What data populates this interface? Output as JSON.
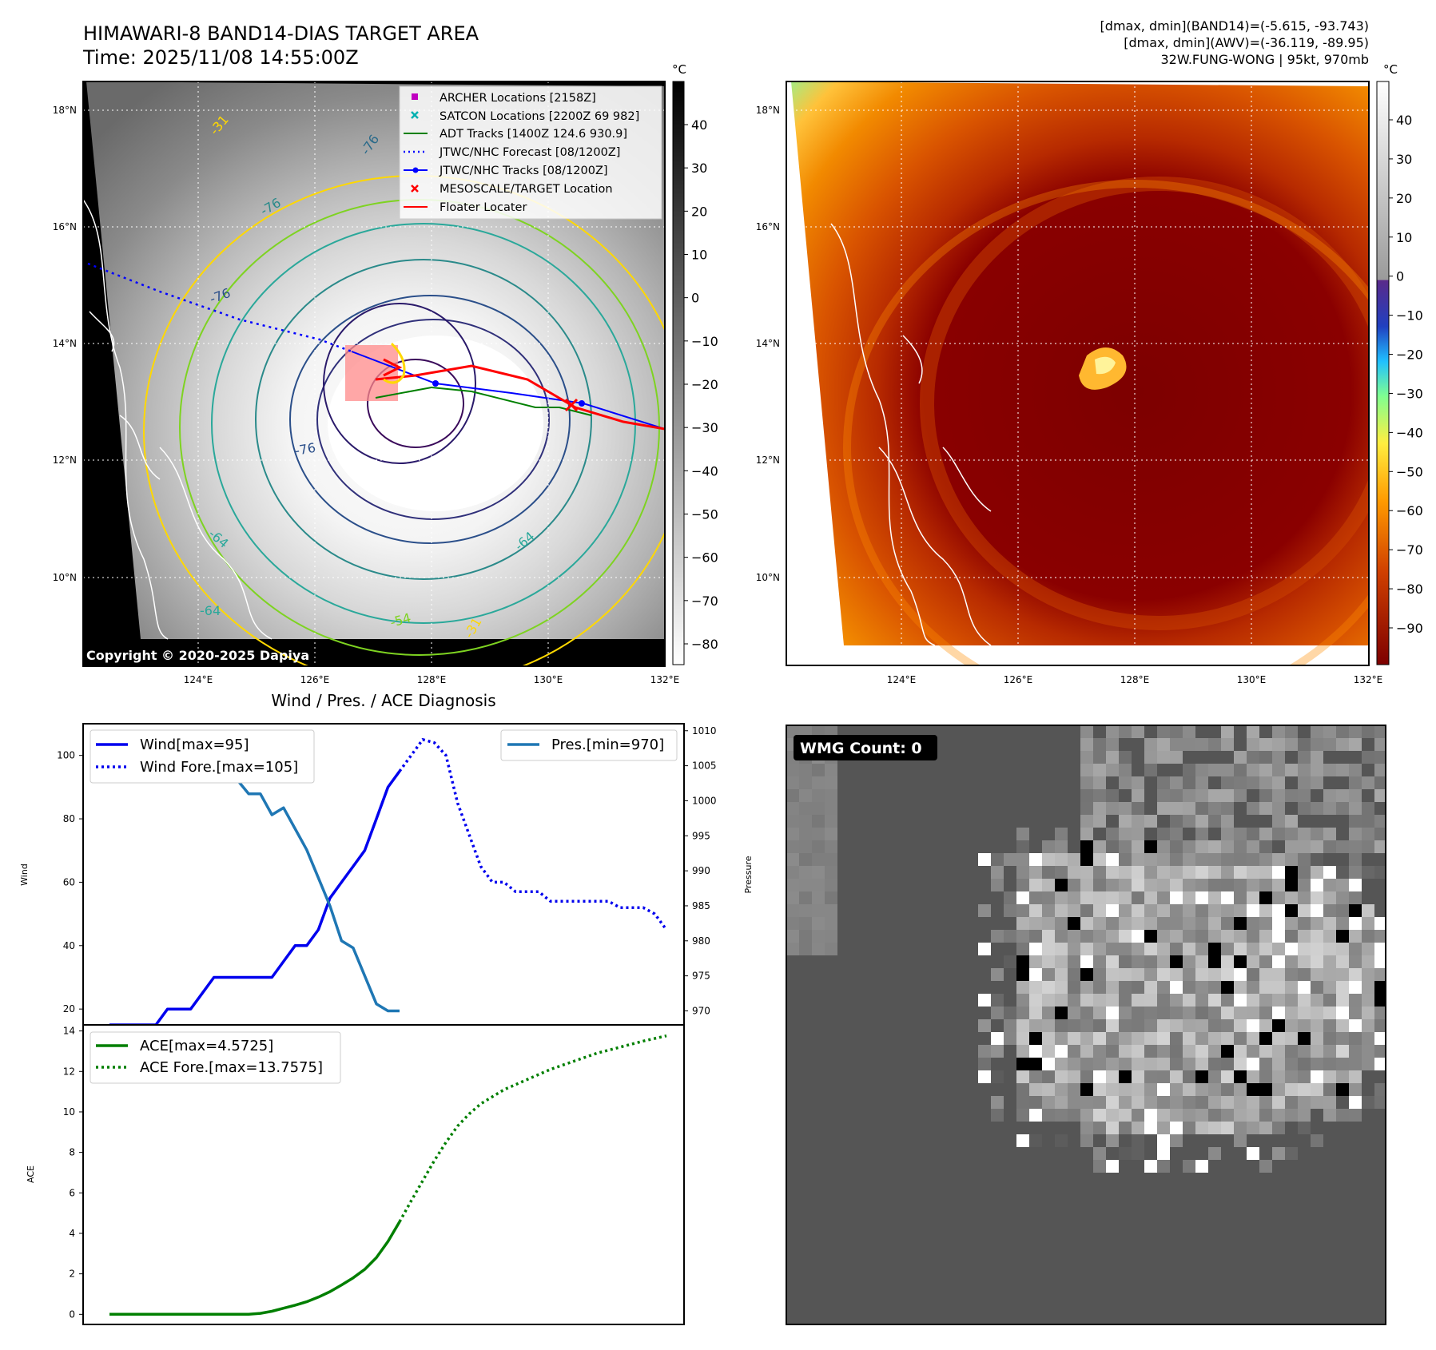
{
  "header": {
    "title_line1": "HIMAWARI-8 BAND14-DIAS TARGET AREA",
    "title_line2": "Time: 2025/11/08 14:55:00Z",
    "info_line1": "[dmax, dmin](BAND14)=(-5.615, -93.743)",
    "info_line2": "[dmax, dmin](AWV)=(-36.119, -89.95)",
    "info_line3": "32W.FUNG-WONG | 95kt, 970mb"
  },
  "map": {
    "lat_labels": [
      "18°N",
      "16°N",
      "14°N",
      "12°N",
      "10°N"
    ],
    "lon_labels": [
      "124°E",
      "126°E",
      "128°E",
      "130°E",
      "132°E"
    ],
    "copyright": "Copyright © 2020-2025 Dapiya",
    "contour_labels": [
      "-76",
      "-76",
      "-76",
      "-76",
      "-64",
      "-64",
      "-64",
      "-54",
      "-31",
      "-31"
    ],
    "legend": [
      {
        "label": "ARCHER Locations [2158Z]",
        "color": "#c000c0",
        "marker": "square"
      },
      {
        "label": "SATCON Locations [2200Z 69 982]",
        "color": "#00b0b0",
        "marker": "x"
      },
      {
        "label": "ADT Tracks [1400Z 124.6 930.9]",
        "color": "#008000",
        "marker": "line"
      },
      {
        "label": "JTWC/NHC Forecast [08/1200Z]",
        "color": "#0000ff",
        "marker": "dotted"
      },
      {
        "label": "JTWC/NHC Tracks [08/1200Z]",
        "color": "#0000ff",
        "marker": "line-dot"
      },
      {
        "label": "MESOSCALE/TARGET Location",
        "color": "#ff0000",
        "marker": "x"
      },
      {
        "label": "Floater Locater",
        "color": "#ff0000",
        "marker": "line"
      }
    ]
  },
  "colorbar_gray": {
    "unit": "°C",
    "ticks": [
      "40",
      "30",
      "20",
      "10",
      "0",
      "−10",
      "−20",
      "−30",
      "−40",
      "−50",
      "−60",
      "−70",
      "−80"
    ]
  },
  "colorbar_color": {
    "unit": "°C",
    "ticks": [
      "40",
      "30",
      "20",
      "10",
      "0",
      "−10",
      "−20",
      "−30",
      "−40",
      "−50",
      "−60",
      "−70",
      "−80",
      "−90"
    ]
  },
  "wmg": {
    "label": "WMG Count: 0"
  },
  "colors": {
    "wind": "#0000ee",
    "pres": "#1f77b4",
    "ace": "#007f00",
    "cold_core": "#7d0000",
    "warm_edge": "#ff9e00"
  },
  "chart_data": [
    {
      "type": "line",
      "title": "Wind / Pres. / ACE Diagnosis",
      "ylabel": "Wind",
      "ylabel2": "Pressure",
      "ylim": [
        15,
        110
      ],
      "ylim2": [
        968,
        1011
      ],
      "x_range": [
        0,
        50
      ],
      "yticks": [
        "100",
        "80",
        "60",
        "40",
        "20"
      ],
      "yticks2": [
        "1010",
        "1005",
        "1000",
        "995",
        "990",
        "985",
        "980",
        "975",
        "970"
      ],
      "series": [
        {
          "name": "Wind[max=95]",
          "axis": "left",
          "style": "solid",
          "x": [
            0,
            2,
            3,
            4,
            5,
            6,
            7,
            8,
            9,
            10,
            11,
            12,
            13,
            14,
            15,
            16,
            17,
            18,
            19,
            20,
            21,
            22,
            23,
            24,
            25
          ],
          "values": [
            15,
            15,
            15,
            15,
            20,
            20,
            20,
            25,
            30,
            30,
            30,
            30,
            30,
            30,
            35,
            40,
            40,
            45,
            55,
            60,
            65,
            70,
            80,
            90,
            95
          ]
        },
        {
          "name": "Wind Fore.[max=105]",
          "axis": "left",
          "style": "dotted",
          "x": [
            25,
            26,
            27,
            28,
            29,
            30,
            31,
            32,
            33,
            34,
            35,
            36,
            37,
            38,
            39,
            40,
            41,
            42,
            43,
            44,
            45,
            46,
            47,
            48
          ],
          "values": [
            95,
            100,
            105,
            104,
            100,
            85,
            75,
            65,
            60,
            60,
            57,
            57,
            57,
            54,
            54,
            54,
            54,
            54,
            54,
            52,
            52,
            52,
            50,
            45
          ]
        },
        {
          "name": "Pres.[min=970]",
          "axis": "right",
          "style": "solid",
          "x": [
            0,
            1,
            2,
            3,
            4,
            5,
            6,
            7,
            8,
            9,
            10,
            11,
            12,
            13,
            14,
            15,
            16,
            17,
            18,
            19,
            20,
            21,
            22,
            23,
            24,
            25
          ],
          "values": [
            1010,
            1008,
            1008,
            1008,
            1007,
            1003,
            1004,
            1004,
            1004,
            1003,
            1003,
            1003,
            1001,
            1001,
            998,
            999,
            996,
            993,
            989,
            985,
            980,
            979,
            975,
            971,
            970,
            970
          ]
        }
      ],
      "legend": [
        "Wind[max=95]",
        "Wind Fore.[max=105]",
        "Pres.[min=970]"
      ]
    },
    {
      "type": "line",
      "ylabel": "ACE",
      "ylim": [
        -0.5,
        14.3
      ],
      "x_range": [
        0,
        50
      ],
      "yticks": [
        "14",
        "12",
        "10",
        "8",
        "6",
        "4",
        "2",
        "0"
      ],
      "series": [
        {
          "name": "ACE[max=4.5725]",
          "style": "solid",
          "x": [
            0,
            2,
            4,
            6,
            8,
            10,
            12,
            13,
            14,
            15,
            16,
            17,
            18,
            19,
            20,
            21,
            22,
            23,
            24,
            25
          ],
          "values": [
            0,
            0,
            0,
            0,
            0,
            0,
            0,
            0.05,
            0.15,
            0.3,
            0.45,
            0.62,
            0.85,
            1.12,
            1.45,
            1.8,
            2.22,
            2.8,
            3.6,
            4.57
          ]
        },
        {
          "name": "ACE Fore.[max=13.7575]",
          "style": "dotted",
          "x": [
            25,
            26,
            27,
            28,
            29,
            30,
            31,
            32,
            34,
            36,
            38,
            40,
            42,
            44,
            46,
            48
          ],
          "values": [
            4.57,
            5.6,
            6.6,
            7.6,
            8.5,
            9.3,
            9.9,
            10.4,
            11.1,
            11.6,
            12.1,
            12.5,
            12.9,
            13.2,
            13.5,
            13.76
          ]
        }
      ],
      "legend": [
        "ACE[max=4.5725]",
        "ACE Fore.[max=13.7575]"
      ]
    }
  ]
}
